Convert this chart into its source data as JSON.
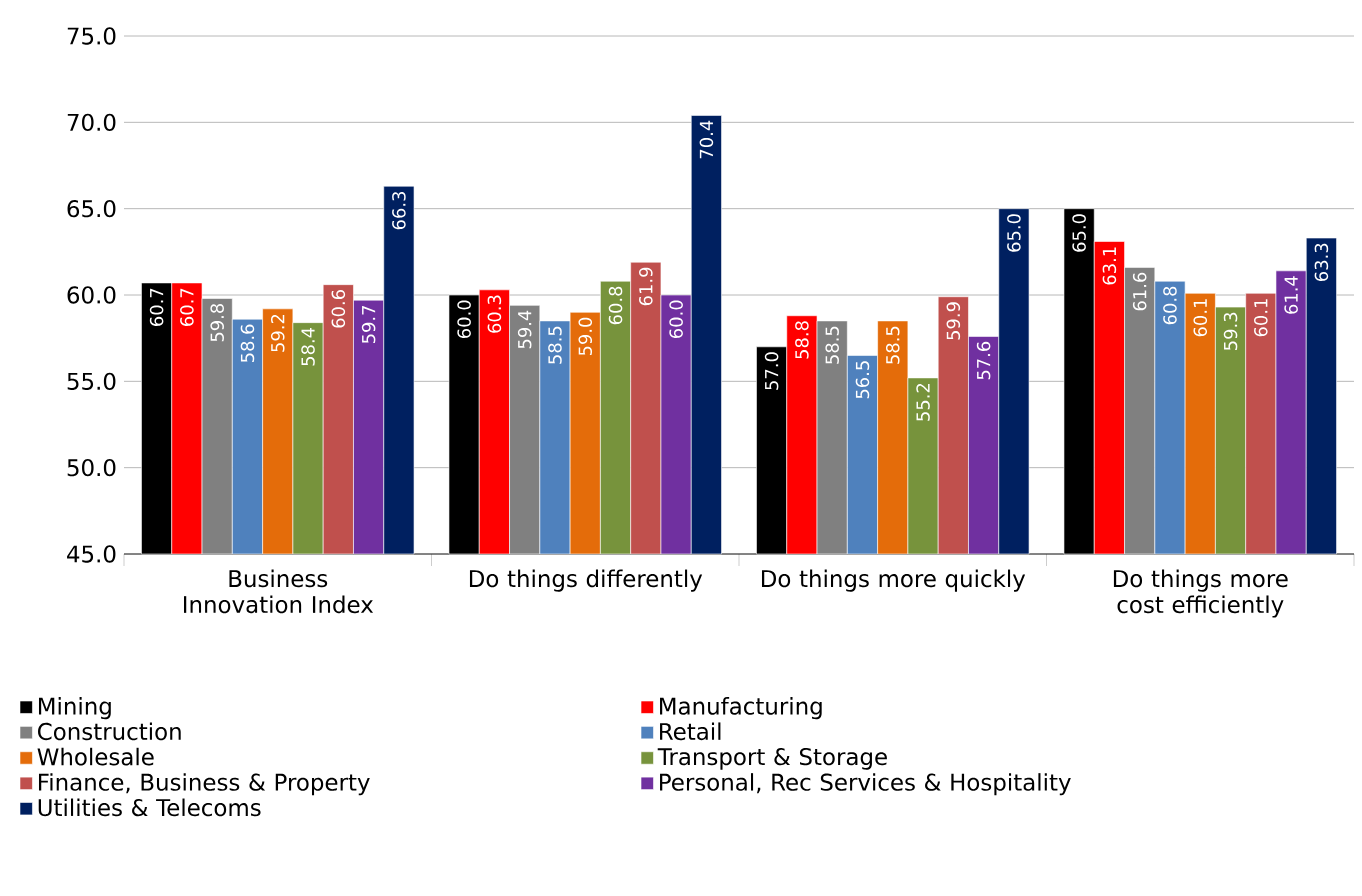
{
  "chart_data": {
    "type": "bar",
    "categories": [
      "Business Innovation Index",
      "Do things differently",
      "Do things more quickly",
      "Do things more cost efficiently"
    ],
    "series": [
      {
        "name": "Mining",
        "color": "#000000",
        "values": [
          60.7,
          60.0,
          57.0,
          65.0
        ],
        "value_labels": [
          "60.7",
          "60.0",
          "57.0",
          "65.0"
        ]
      },
      {
        "name": "Manufacturing",
        "color": "#ff0000",
        "values": [
          60.7,
          60.3,
          58.8,
          63.1
        ],
        "value_labels": [
          "60.7",
          "60.3",
          "58.8",
          "63.1"
        ]
      },
      {
        "name": "Construction",
        "color": "#808080",
        "values": [
          59.8,
          59.4,
          58.5,
          61.6
        ],
        "value_labels": [
          "59.8",
          "59.4",
          "58.5",
          "61.6"
        ]
      },
      {
        "name": "Retail",
        "color": "#4f81bd",
        "values": [
          58.6,
          58.5,
          56.5,
          60.8
        ],
        "value_labels": [
          "58.6",
          "58.5",
          "56.5",
          "60.8"
        ]
      },
      {
        "name": "Wholesale",
        "color": "#e46c0a",
        "values": [
          59.2,
          59.0,
          58.5,
          60.1
        ],
        "value_labels": [
          "59.2",
          "59.0",
          "58.5",
          "60.1"
        ]
      },
      {
        "name": "Transport & Storage",
        "color": "#77933c",
        "values": [
          58.4,
          60.8,
          55.2,
          59.3
        ],
        "value_labels": [
          "58.4",
          "60.8",
          "55.2",
          "59.3"
        ]
      },
      {
        "name": "Finance, Business & Property",
        "color": "#c0504d",
        "values": [
          60.6,
          61.9,
          59.9,
          60.1
        ],
        "value_labels": [
          "60.6",
          "61.9",
          "59.9",
          "60.1"
        ]
      },
      {
        "name": "Personal, Rec Services & Hospitality",
        "color": "#7030a0",
        "values": [
          59.7,
          60.0,
          57.6,
          61.4
        ],
        "value_labels": [
          "59.7",
          "60.0",
          "57.6",
          "61.4"
        ]
      },
      {
        "name": "Utilities & Telecoms",
        "color": "#002060",
        "values": [
          66.3,
          70.4,
          65.0,
          63.3
        ],
        "value_labels": [
          "66.3",
          "70.4",
          "65.0",
          "63.3"
        ]
      }
    ],
    "ylim": [
      45,
      75
    ],
    "yticks": [
      {
        "value": 45,
        "label": "45.0"
      },
      {
        "value": 50,
        "label": "50.0"
      },
      {
        "value": 55,
        "label": "55.0"
      },
      {
        "value": 60,
        "label": "60.0"
      },
      {
        "value": 65,
        "label": "65.0"
      },
      {
        "value": 70,
        "label": "70.0"
      },
      {
        "value": 75,
        "label": "75.0"
      }
    ],
    "grid": "y",
    "legend": "bottom"
  }
}
